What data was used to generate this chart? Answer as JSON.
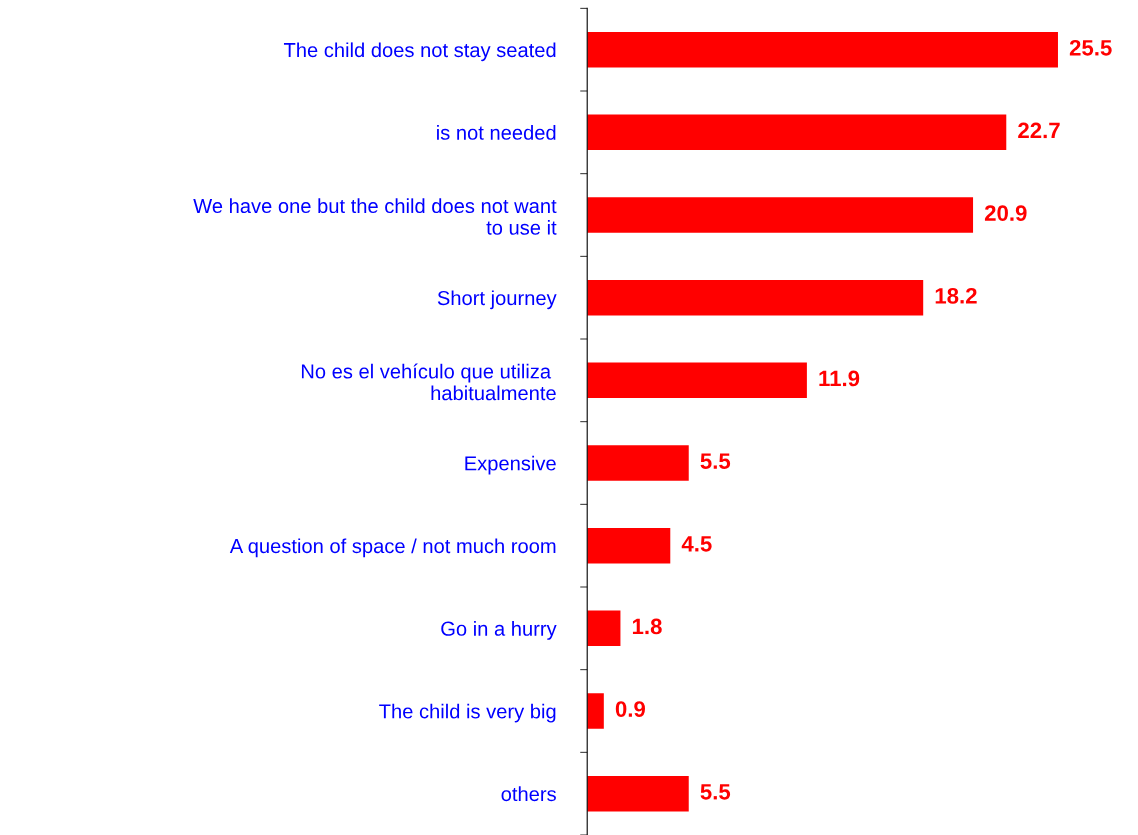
{
  "chart_data": {
    "type": "bar",
    "orientation": "horizontal",
    "categories": [
      "The child does not stay seated",
      "is not needed",
      "We have one but the child does not want\nto use it",
      "Short journey",
      "No es el vehículo que utiliza \nhabitualmente",
      "Expensive",
      "A question of space / not much room",
      "Go in a hurry",
      "The child is very big",
      "others"
    ],
    "values": [
      25.5,
      22.7,
      20.9,
      18.2,
      11.9,
      5.5,
      4.5,
      1.8,
      0.9,
      5.5
    ],
    "color": "#ff0000",
    "data_labels": true,
    "grid": false,
    "legend": false
  }
}
